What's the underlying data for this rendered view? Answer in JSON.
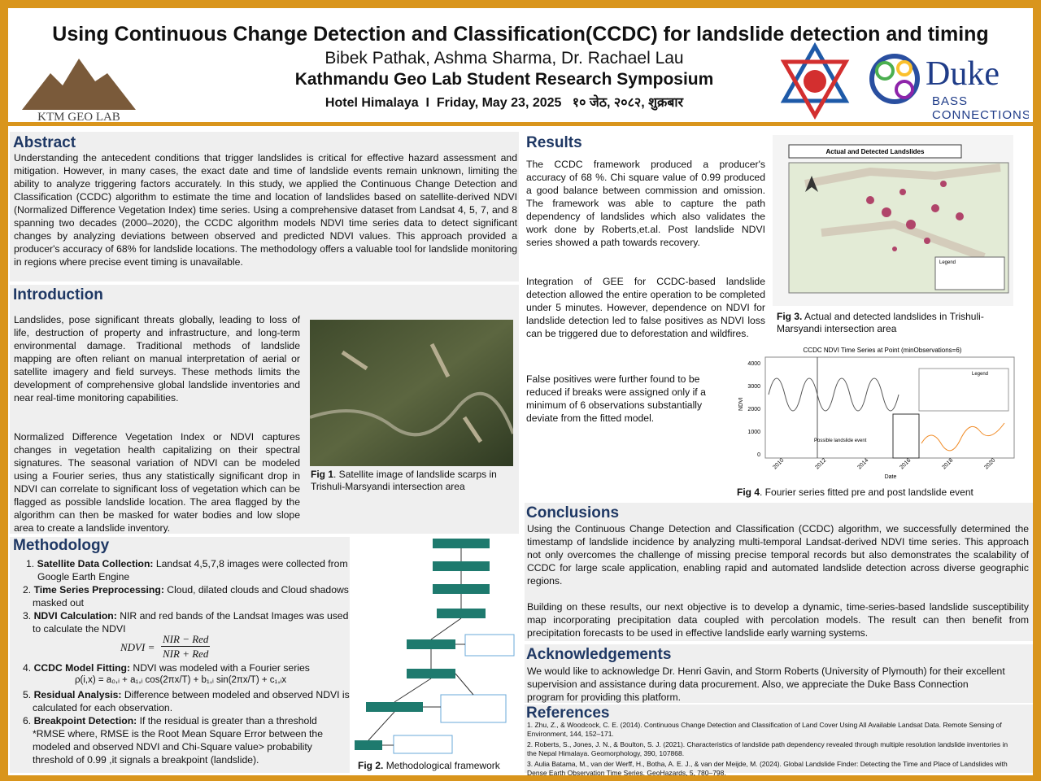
{
  "header": {
    "title": "Using Continuous Change Detection and Classification(CCDC) for landslide detection and timing",
    "authors": "Bibek Pathak, Ashma Sharma, Dr. Rachael Lau",
    "event": "Kathmandu Geo Lab Student Research Symposium",
    "venue": "Hotel Himalaya",
    "separator": "I",
    "date": "Friday, May 23, 2025",
    "date_nepali": "१० जेठ, २०८२, शुक्रबार",
    "logo_left": "KTM GEO LAB",
    "logo_right": {
      "name": "Duke",
      "line1": "BASS",
      "line2": "CONNECTIONS"
    }
  },
  "abstract": {
    "heading": "Abstract",
    "text": "Understanding the antecedent conditions that trigger landslides is critical for effective hazard assessment and mitigation. However, in many cases, the exact date and time of landslide events remain unknown, limiting the ability to analyze triggering factors accurately. In this study, we applied the Continuous Change Detection and Classification (CCDC) algorithm to estimate the time and location of landslides based on satellite-derived NDVI (Normalized Difference Vegetation Index) time series. Using a comprehensive dataset from Landsat 4, 5, 7, and 8 spanning two decades (2000–2020), the CCDC algorithm models NDVI time series data to detect significant changes by analyzing deviations between observed and predicted NDVI values. This approach provided a producer's accuracy of  68% for landslide locations. The methodology offers a valuable tool for landslide monitoring in regions where precise event timing is unavailable."
  },
  "introduction": {
    "heading": "Introduction",
    "paragraphs": [
      "Landslides, pose significant threats globally, leading to loss of life, destruction of property and infrastructure, and long-term environmental damage. Traditional methods of landslide mapping are often reliant on manual interpretation of aerial or satellite imagery and field surveys. These methods limits the development of comprehensive global landslide inventories and near real-time monitoring capabilities.",
      "Normalized Difference Vegetation Index or NDVI captures changes in vegetation health capitalizing on their spectral signatures. The seasonal variation of NDVI can be modeled using a Fourier series, thus any statistically significant drop in NDVI can correlate to significant loss of vegetation which can be flagged as possible landslide location. The area flagged by the algorithm can then be masked for water bodies and low slope area to create a landslide inventory."
    ],
    "figure": {
      "label": "Fig 1",
      "caption": ". Satellite image of landslide scarps in Trishuli-Marsyandi intersection area"
    }
  },
  "methodology": {
    "heading": "Methodology",
    "items": [
      {
        "num": "1.",
        "label": "Satellite Data Collection:",
        "text": "Landsat 4,5,7,8 images were collected from Google Earth Engine"
      },
      {
        "num": "2.",
        "label": "Time Series Preprocessing:",
        "text": "Cloud, dilated clouds and Cloud shadows masked out"
      },
      {
        "num": "3.",
        "label": "NDVI Calculation:",
        "text": "NIR and red bands of the Landsat Images was used to calculate the NDVI"
      },
      {
        "num": "4.",
        "label": "CCDC Model Fitting:",
        "text": "NDVI was modeled with a Fourier series"
      },
      {
        "num": "5.",
        "label": "Residual Analysis:",
        "text": "Difference between modeled and observed NDVI is calculated for each observation."
      },
      {
        "num": "6.",
        "label": "Breakpoint Detection:",
        "text": "If the residual is greater than a threshold *RMSE where, RMSE is the Root Mean Square Error between the modeled and observed NDVI and Chi-Square value> probability threshold of 0.99 ,it signals a breakpoint (landslide)."
      }
    ],
    "formula": {
      "lhs": "NDVI =",
      "numerator": "NIR − Red",
      "denominator": "NIR + Red"
    },
    "model": "ρ(i,x) = a₀,ᵢ + a₁,ᵢ cos(2πx/T) + b₁,ᵢ sin(2πx/T) + c₁,ᵢx",
    "figure": {
      "label": "Fig 2.",
      "caption": "Methodological framework"
    }
  },
  "results": {
    "heading": "Results",
    "paragraphs": [
      "The CCDC framework produced a producer's accuracy of 68 %. Chi square value of 0.99 produced a good balance between commission and omission. The framework was able to capture the path dependency of landslides which also validates the work done by Roberts,et.al. Post landslide NDVI series showed  a path towards recovery.",
      "Integration of GEE for CCDC-based landslide detection allowed the entire operation to be completed under 5 minutes. However, dependence on NDVI for landslide detection led to false positives as NDVI loss can be triggered due to deforestation and wildfires.",
      "False positives were further found to be reduced if breaks were assigned only if a minimum of 6 observations substantially deviate from the fitted model."
    ],
    "figure3": {
      "title": "Actual and Detected Landslides",
      "legend": "Legend",
      "label": "Fig 3.",
      "caption": "Actual and detected landslides in Trishuli-Marsyandi intersection area"
    },
    "figure4": {
      "title": "CCDC NDVI Time Series at Point (minObservations=6)",
      "ylabel": "NDVI",
      "xlabel": "Date",
      "yticks": [
        "0",
        "1000",
        "2000",
        "3000",
        "4000"
      ],
      "xticks": [
        "2010",
        "2012",
        "2014",
        "2016",
        "2018",
        "2020"
      ],
      "legend": "Legend",
      "annotation": "Possible landslide event",
      "label": "Fig 4",
      "caption": ". Fourier series fitted pre and post landslide event"
    }
  },
  "conclusions": {
    "heading": "Conclusions",
    "paragraphs": [
      "Using the Continuous Change Detection and Classification (CCDC) algorithm, we successfully determined the timestamp of landslide incidence by analyzing multi-temporal Landsat-derived NDVI time series. This approach not only overcomes the challenge of missing precise temporal records but also demonstrates the scalability of CCDC for large scale application, enabling rapid and automated landslide detection across diverse geographic regions.",
      "Building on these results, our next objective is to develop a dynamic, time-series-based landslide susceptibility map incorporating precipitation data coupled with percolation models. The result can then benefit from precipitation  forecasts to be used in effective landslide early warning systems."
    ]
  },
  "acknowledgements": {
    "heading": "Acknowledgements",
    "text": "We would like to acknowledge Dr. Henri Gavin, and Storm Roberts (University of Plymouth) for their excellent supervision and assistance during data procurement. Also, we appreciate the Duke Bass Connection program for providing this platform."
  },
  "references": {
    "heading": "References",
    "items": [
      "1. Zhu, Z., & Woodcock, C. E. (2014). Continuous Change Detection and Classification of Land Cover Using All Available Landsat Data. Remote Sensing of Environment, 144, 152–171.",
      "2. Roberts, S., Jones, J. N., & Boulton, S. J. (2021). Characteristics of landslide path dependency revealed through multiple resolution landslide inventories in the Nepal Himalaya. Geomorphology, 390, 107868.",
      "3. Aulia Batama, M., van der Werff, H., Botha, A. E. J., & van der Meijde, M. (2024). Global Landslide Finder: Detecting the Time and Place of Landslides with Dense Earth Observation Time Series. GeoHazards, 5, 780–798."
    ]
  }
}
